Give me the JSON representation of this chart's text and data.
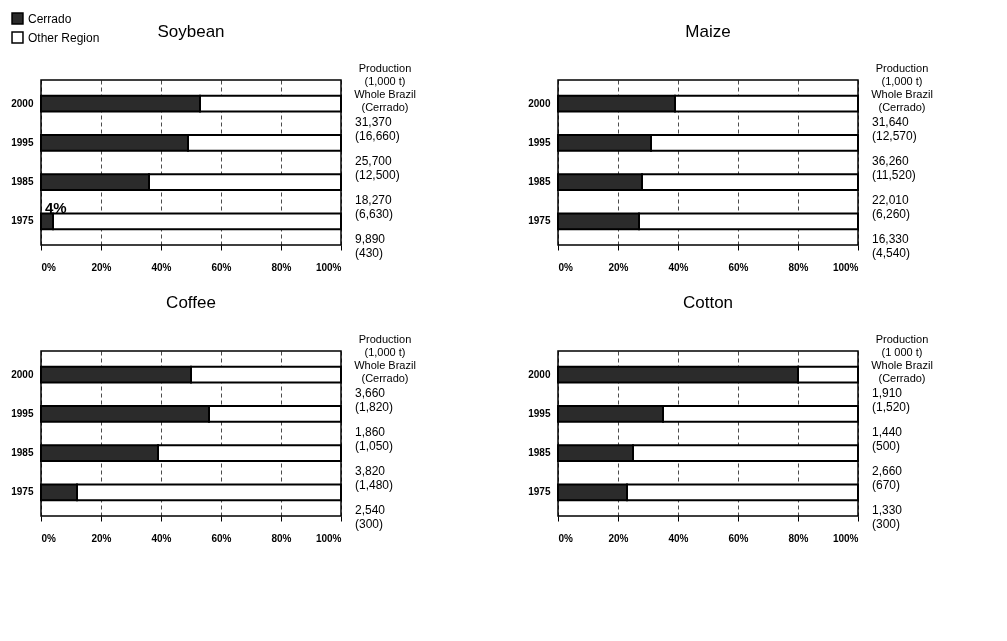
{
  "chart_data": [
    {
      "type": "bar",
      "title": "Soybean",
      "orientation": "horizontal",
      "stacked": true,
      "categories": [
        "2000",
        "1995",
        "1985",
        "1975"
      ],
      "series": [
        {
          "name": "Cerrado",
          "color": "#2b2b2b",
          "values": [
            53,
            49,
            36,
            4
          ],
          "value_labels": [
            null,
            null,
            null,
            "4%"
          ]
        },
        {
          "name": "Other Region",
          "color": "#ffffff",
          "values": [
            47,
            51,
            64,
            96
          ]
        }
      ],
      "xlim": [
        0,
        100
      ],
      "xticks": [
        {
          "value": 0,
          "label": "0%"
        },
        {
          "value": 20,
          "label": "20%"
        },
        {
          "value": 40,
          "label": "40%"
        },
        {
          "value": 60,
          "label": "60%"
        },
        {
          "value": 80,
          "label": "80%"
        },
        {
          "value": 100,
          "label": "100%"
        }
      ],
      "grid": "x",
      "legend": "top left",
      "annotations": [
        "Production\n(1,000 t)\nWhole Brazil\n(Cerrado)",
        "31,370\n(16,660)",
        "25,700\n(12,500)",
        "18,270\n(6,630)",
        "9,890\n(430)"
      ]
    },
    {
      "type": "bar",
      "title": "Maize",
      "orientation": "horizontal",
      "stacked": true,
      "categories": [
        "2000",
        "1995",
        "1985",
        "1975"
      ],
      "series": [
        {
          "name": "Cerrado",
          "color": "#2b2b2b",
          "values": [
            39,
            31,
            28,
            27
          ]
        },
        {
          "name": "Other Region",
          "color": "#ffffff",
          "values": [
            61,
            69,
            72,
            73
          ]
        }
      ],
      "xlim": [
        0,
        100
      ],
      "xticks": [
        {
          "value": 0,
          "label": "0%"
        },
        {
          "value": 20,
          "label": "20%"
        },
        {
          "value": 40,
          "label": "40%"
        },
        {
          "value": 60,
          "label": "60%"
        },
        {
          "value": 80,
          "label": "80%"
        },
        {
          "value": 100,
          "label": "100%"
        }
      ],
      "grid": "x",
      "annotations": [
        "Production\n(1,000 t)\nWhole Brazil\n(Cerrado)",
        "31,640\n(12,570)",
        "36,260\n(11,520)",
        "22,010\n(6,260)",
        "16,330\n(4,540)"
      ]
    },
    {
      "type": "bar",
      "title": "Coffee",
      "orientation": "horizontal",
      "stacked": true,
      "categories": [
        "2000",
        "1995",
        "1985",
        "1975"
      ],
      "series": [
        {
          "name": "Cerrado",
          "color": "#2b2b2b",
          "values": [
            50,
            56,
            39,
            12
          ]
        },
        {
          "name": "Other Region",
          "color": "#ffffff",
          "values": [
            50,
            44,
            61,
            88
          ]
        }
      ],
      "xlim": [
        0,
        100
      ],
      "xticks": [
        {
          "value": 0,
          "label": "0%"
        },
        {
          "value": 20,
          "label": "20%"
        },
        {
          "value": 40,
          "label": "40%"
        },
        {
          "value": 60,
          "label": "60%"
        },
        {
          "value": 80,
          "label": "80%"
        },
        {
          "value": 100,
          "label": "100%"
        }
      ],
      "grid": "x",
      "annotations": [
        "Production\n(1,000 t)\nWhole Brazil\n(Cerrado)",
        "3,660\n(1,820)",
        "1,860\n(1,050)",
        "3,820\n(1,480)",
        "2,540\n(300)"
      ]
    },
    {
      "type": "bar",
      "title": "Cotton",
      "orientation": "horizontal",
      "stacked": true,
      "categories": [
        "2000",
        "1995",
        "1985",
        "1975"
      ],
      "series": [
        {
          "name": "Cerrado",
          "color": "#2b2b2b",
          "values": [
            80,
            35,
            25,
            23
          ]
        },
        {
          "name": "Other Region",
          "color": "#ffffff",
          "values": [
            20,
            65,
            75,
            77
          ]
        }
      ],
      "xlim": [
        0,
        100
      ],
      "xticks": [
        {
          "value": 0,
          "label": "0%"
        },
        {
          "value": 20,
          "label": "20%"
        },
        {
          "value": 40,
          "label": "40%"
        },
        {
          "value": 60,
          "label": "60%"
        },
        {
          "value": 80,
          "label": "80%"
        },
        {
          "value": 100,
          "label": "100%"
        }
      ],
      "grid": "x",
      "annotations": [
        "Production\n(1 000 t)\nWhole Brazil\n(Cerrado)",
        "1,910\n(1,520)",
        "1,440\n(500)",
        "2,660\n(670)",
        "1,330\n(300)"
      ]
    }
  ]
}
